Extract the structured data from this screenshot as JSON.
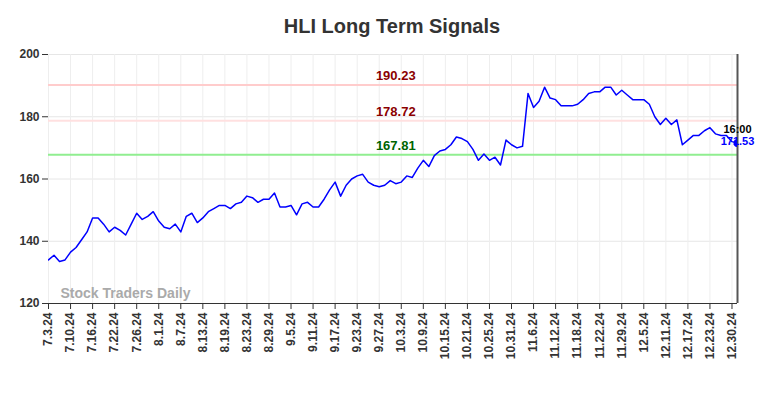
{
  "chart_data": {
    "type": "line",
    "title": "HLI Long Term Signals",
    "watermark": "Stock Traders Daily",
    "color": "#0000ff",
    "grid": true,
    "ylim": [
      120,
      200
    ],
    "yticks": [
      120,
      140,
      160,
      180,
      200
    ],
    "last_label": "16:00",
    "hlines": [
      {
        "value": 190.23,
        "color": "#ffcccc",
        "label_color": "#8b0000"
      },
      {
        "value": 178.72,
        "color": "#ffe0e0",
        "label_color": "#8b0000"
      },
      {
        "value": 167.81,
        "color": "#90ee90",
        "label_color": "#006400"
      }
    ],
    "categories": [
      "7.3.24",
      null,
      null,
      null,
      "7.10.24",
      null,
      null,
      null,
      "7.16.24",
      null,
      null,
      null,
      "7.22.24",
      null,
      null,
      null,
      "7.26.24",
      null,
      null,
      null,
      "8.1.24",
      null,
      null,
      null,
      "8.7.24",
      null,
      null,
      null,
      "8.13.24",
      null,
      null,
      null,
      "8.19.24",
      null,
      null,
      null,
      "8.23.24",
      null,
      null,
      null,
      "8.29.24",
      null,
      null,
      null,
      "9.5.24",
      null,
      null,
      null,
      "9.11.24",
      null,
      null,
      null,
      "9.17.24",
      null,
      null,
      null,
      "9.23.24",
      null,
      null,
      null,
      "9.27.24",
      null,
      null,
      null,
      "10.3.24",
      null,
      null,
      null,
      "10.9.24",
      null,
      null,
      null,
      "10.15.24",
      null,
      null,
      null,
      "10.21.24",
      null,
      null,
      null,
      "10.25.24",
      null,
      null,
      null,
      "10.31.24",
      null,
      null,
      null,
      "11.6.24",
      null,
      null,
      null,
      "11.12.24",
      null,
      null,
      null,
      "11.18.24",
      null,
      null,
      null,
      "11.22.24",
      null,
      null,
      null,
      "11.29.24",
      null,
      null,
      null,
      "12.5.24",
      null,
      null,
      null,
      "12.11.24",
      null,
      null,
      null,
      "12.17.24",
      null,
      null,
      null,
      "12.23.24",
      null,
      null,
      null,
      "12.30.24",
      null
    ],
    "values": [
      134,
      135.5,
      133.5,
      134,
      136.5,
      138,
      140.5,
      143,
      147.5,
      147.5,
      145.5,
      143,
      144.5,
      143.5,
      142,
      145.5,
      149,
      147,
      148,
      149.5,
      146.5,
      144.5,
      144,
      145.5,
      143,
      148,
      149,
      146,
      147.5,
      149.5,
      150.5,
      151.5,
      151.5,
      150.5,
      152,
      152.5,
      154.5,
      154,
      152.5,
      153.5,
      153.5,
      155.5,
      151,
      151,
      151.5,
      148.5,
      152,
      152.5,
      151,
      151,
      153.5,
      156.5,
      159,
      154.5,
      158,
      160,
      161,
      161.5,
      159,
      158,
      157.5,
      158,
      159.5,
      158.5,
      159,
      161,
      160.5,
      163.5,
      166,
      164,
      167.5,
      169,
      169.5,
      171,
      173.5,
      173,
      172,
      169.5,
      166,
      168,
      166,
      167,
      164.5,
      172.5,
      171,
      170,
      170.5,
      187.5,
      183,
      185,
      189.5,
      186,
      185.5,
      183.5,
      183.5,
      183.5,
      184,
      185.5,
      187.5,
      188,
      188,
      189.5,
      189.5,
      187,
      188.5,
      187,
      185.5,
      185.5,
      185.5,
      184,
      180,
      177.5,
      179.5,
      177.5,
      179,
      171,
      172.5,
      174,
      174,
      175.5,
      176.5,
      174.5,
      174,
      174,
      172,
      171.53
    ]
  }
}
